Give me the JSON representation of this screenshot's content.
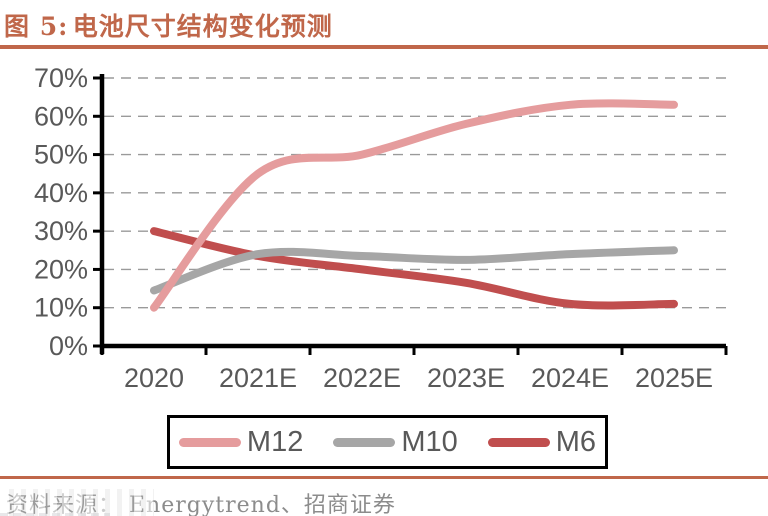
{
  "header": {
    "figure_label": "图 5:",
    "title": "电池尺寸结构变化预测"
  },
  "chart_data": {
    "type": "line",
    "title": "电池尺寸结构变化预测",
    "categories": [
      "2020",
      "2021E",
      "2022E",
      "2023E",
      "2024E",
      "2025E"
    ],
    "series": [
      {
        "name": "M12",
        "color": "#E59C9D",
        "values": [
          10,
          45,
          50,
          58,
          63,
          63
        ]
      },
      {
        "name": "M10",
        "color": "#A6A6A6",
        "values": [
          14.5,
          24,
          23.5,
          22.5,
          24,
          25
        ]
      },
      {
        "name": "M6",
        "color": "#C04E4E",
        "values": [
          30,
          23.5,
          20,
          16.5,
          11,
          11
        ]
      }
    ],
    "ylim": [
      0,
      70
    ],
    "yticks": [
      "0%",
      "10%",
      "20%",
      "30%",
      "40%",
      "50%",
      "60%",
      "70%"
    ],
    "grid": "horizontal-dashed",
    "legend_position": "bottom",
    "line_smoothing": true
  },
  "footer": {
    "source": "资料来源： Energytrend、招商证券"
  },
  "colors": {
    "accent": "#C0674A",
    "axis": "#000000",
    "axis_label": "#595959",
    "grid": "#9A9A9A",
    "source_text": "#8C8C8C"
  }
}
